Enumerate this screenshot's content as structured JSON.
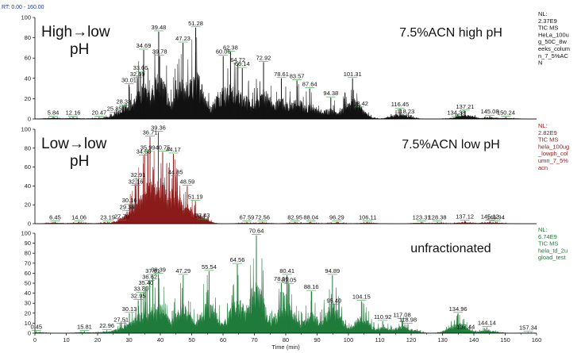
{
  "rt_range": "RT: 0.00 - 160.00",
  "x_axis": {
    "label": "Time (min)",
    "range": [
      0,
      160
    ],
    "ticks": [
      0,
      10,
      20,
      30,
      40,
      50,
      60,
      70,
      80,
      90,
      100,
      110,
      120,
      130,
      140,
      150,
      160
    ]
  },
  "chart_data": [
    {
      "type": "area",
      "title": "7.5%ACN high pH",
      "sample_label": [
        "High→low",
        "pH"
      ],
      "color": "#111111",
      "x_range": [
        0,
        160
      ],
      "y_range": [
        0,
        100
      ],
      "y_ticks": [
        0,
        20,
        40,
        60,
        80,
        100
      ],
      "side_info": [
        "NL:",
        "2.37E9",
        "TIC  MS",
        "HeLa_100u",
        "g_50C_8w",
        "eeks_colum",
        "n_7_5%AC",
        "N"
      ],
      "peaks": [
        {
          "x": 5.84,
          "y": 2
        },
        {
          "x": 12.16,
          "y": 2
        },
        {
          "x": 20.47,
          "y": 2
        },
        {
          "x": 25.35,
          "y": 6
        },
        {
          "x": 28.33,
          "y": 13
        },
        {
          "x": 30.01,
          "y": 34
        },
        {
          "x": 32.69,
          "y": 40
        },
        {
          "x": 33.66,
          "y": 46
        },
        {
          "x": 34.69,
          "y": 68
        },
        {
          "x": 39.48,
          "y": 86
        },
        {
          "x": 39.78,
          "y": 62
        },
        {
          "x": 47.23,
          "y": 75
        },
        {
          "x": 51.28,
          "y": 90
        },
        {
          "x": 60.06,
          "y": 62
        },
        {
          "x": 62.38,
          "y": 66
        },
        {
          "x": 64.72,
          "y": 54
        },
        {
          "x": 66.14,
          "y": 50
        },
        {
          "x": 72.92,
          "y": 56
        },
        {
          "x": 78.61,
          "y": 40
        },
        {
          "x": 83.57,
          "y": 38
        },
        {
          "x": 87.64,
          "y": 30
        },
        {
          "x": 94.38,
          "y": 21
        },
        {
          "x": 101.31,
          "y": 40
        },
        {
          "x": 103.42,
          "y": 11
        },
        {
          "x": 116.45,
          "y": 10
        },
        {
          "x": 118.23,
          "y": 3
        },
        {
          "x": 134.38,
          "y": 2
        },
        {
          "x": 137.21,
          "y": 8
        },
        {
          "x": 145.08,
          "y": 3
        },
        {
          "x": 150.24,
          "y": 2
        }
      ]
    },
    {
      "type": "area",
      "title": "7.5%ACN low pH",
      "sample_label": [
        "Low→low",
        "pH"
      ],
      "color": "#8b1a1a",
      "x_range": [
        0,
        160
      ],
      "y_range": [
        0,
        100
      ],
      "y_ticks": [
        0,
        20,
        40,
        60,
        80,
        100
      ],
      "side_info": [
        "NL:",
        "2.82E9",
        "TIC  MS",
        "hela_100ug",
        "_lowph_col",
        "umn_7_5%",
        "acn"
      ],
      "peaks": [
        {
          "x": 6.45,
          "y": 2
        },
        {
          "x": 14.06,
          "y": 2
        },
        {
          "x": 23.19,
          "y": 2
        },
        {
          "x": 27.7,
          "y": 3
        },
        {
          "x": 29.38,
          "y": 13
        },
        {
          "x": 30.16,
          "y": 20
        },
        {
          "x": 32.16,
          "y": 40
        },
        {
          "x": 32.91,
          "y": 47
        },
        {
          "x": 34.68,
          "y": 72
        },
        {
          "x": 35.99,
          "y": 76
        },
        {
          "x": 36.71,
          "y": 92
        },
        {
          "x": 39.36,
          "y": 97
        },
        {
          "x": 40.75,
          "y": 76
        },
        {
          "x": 44.17,
          "y": 74
        },
        {
          "x": 44.85,
          "y": 50
        },
        {
          "x": 48.59,
          "y": 40
        },
        {
          "x": 51.19,
          "y": 24
        },
        {
          "x": 53.43,
          "y": 4
        },
        {
          "x": 67.59,
          "y": 2
        },
        {
          "x": 72.56,
          "y": 2
        },
        {
          "x": 82.95,
          "y": 2
        },
        {
          "x": 88.04,
          "y": 2
        },
        {
          "x": 96.29,
          "y": 2
        },
        {
          "x": 106.11,
          "y": 2
        },
        {
          "x": 123.31,
          "y": 2
        },
        {
          "x": 128.38,
          "y": 2
        },
        {
          "x": 137.12,
          "y": 3
        },
        {
          "x": 145.12,
          "y": 3
        },
        {
          "x": 146.94,
          "y": 2
        }
      ]
    },
    {
      "type": "area",
      "title": "unfractionated",
      "sample_label": [],
      "color": "#1e7b3a",
      "x_range": [
        0,
        160
      ],
      "y_range": [
        0,
        100
      ],
      "y_ticks": [
        0,
        10,
        20,
        30,
        40,
        50,
        60,
        70,
        80,
        90,
        100
      ],
      "side_info": [
        "NL:",
        "6.74E9",
        "TIC  MS",
        "hela_td_2u",
        "gload_test"
      ],
      "peaks": [
        {
          "x": 0.45,
          "y": 2
        },
        {
          "x": 15.81,
          "y": 2
        },
        {
          "x": 22.96,
          "y": 3
        },
        {
          "x": 27.51,
          "y": 9
        },
        {
          "x": 30.13,
          "y": 20
        },
        {
          "x": 32.95,
          "y": 33
        },
        {
          "x": 33.89,
          "y": 40
        },
        {
          "x": 35.4,
          "y": 46
        },
        {
          "x": 36.62,
          "y": 52
        },
        {
          "x": 37.61,
          "y": 58
        },
        {
          "x": 39.39,
          "y": 59
        },
        {
          "x": 47.29,
          "y": 58
        },
        {
          "x": 55.54,
          "y": 62
        },
        {
          "x": 64.56,
          "y": 69
        },
        {
          "x": 70.64,
          "y": 98
        },
        {
          "x": 78.59,
          "y": 50
        },
        {
          "x": 80.41,
          "y": 58
        },
        {
          "x": 81.05,
          "y": 49
        },
        {
          "x": 88.16,
          "y": 42
        },
        {
          "x": 94.89,
          "y": 58
        },
        {
          "x": 95.4,
          "y": 28
        },
        {
          "x": 104.15,
          "y": 32
        },
        {
          "x": 110.92,
          "y": 12
        },
        {
          "x": 117.08,
          "y": 14
        },
        {
          "x": 118.98,
          "y": 9
        },
        {
          "x": 134.96,
          "y": 20
        },
        {
          "x": 137.44,
          "y": 2
        },
        {
          "x": 144.14,
          "y": 6
        },
        {
          "x": 157.34,
          "y": 1
        }
      ]
    }
  ]
}
